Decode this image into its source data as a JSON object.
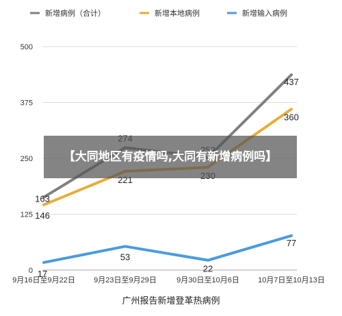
{
  "overlay": {
    "headline": "【大同地区有疫情吗,大同有新增病例吗】"
  },
  "chart_data": {
    "type": "line",
    "title": "广州报告新增登革热病例",
    "xlabel": "",
    "ylabel": "",
    "categories": [
      "9月16日至9月22日",
      "9月23日至9月29日",
      "9月30日至10月6日",
      "10月7日至10月13日"
    ],
    "ylim": [
      0,
      500
    ],
    "yticks": [
      0,
      125,
      250,
      375,
      500
    ],
    "grid": true,
    "legend_position": "top",
    "series": [
      {
        "name": "新增病例（合计）",
        "color": "#808080",
        "values": [
          163,
          274,
          252,
          437
        ],
        "labels": [
          "163",
          "274",
          "252",
          "437"
        ]
      },
      {
        "name": "新增本地病例",
        "color": "#E6AD3A",
        "values": [
          146,
          221,
          230,
          360
        ],
        "labels": [
          "146",
          "221",
          "230",
          "360"
        ]
      },
      {
        "name": "新增输入病例",
        "color": "#4A9BE0",
        "values": [
          17,
          53,
          22,
          77
        ],
        "labels": [
          "17",
          "53",
          "22",
          "77"
        ]
      }
    ]
  }
}
